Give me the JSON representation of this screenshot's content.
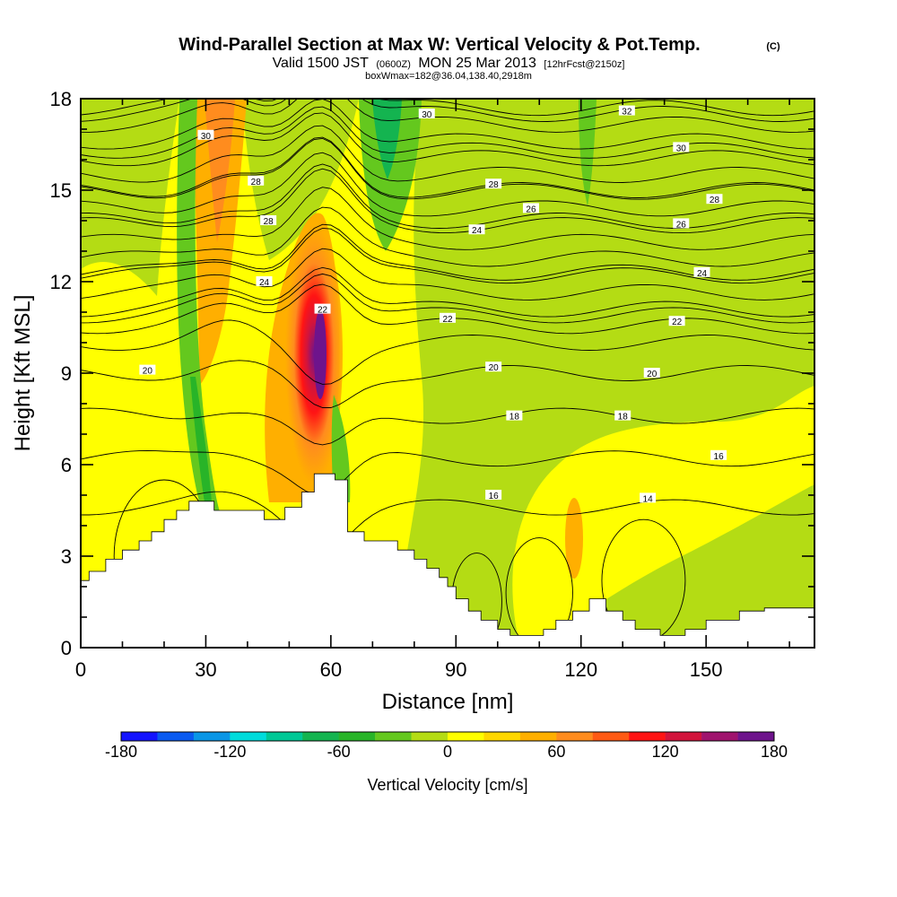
{
  "title": {
    "main": "Wind-Parallel Section at Max W: Vertical Velocity & Pot.Temp.",
    "copyright": "(C)",
    "valid_prefix": "Valid 1500 JST",
    "valid_utc": "(0600Z)",
    "valid_date": "MON 25 Mar 2013",
    "forecast": "[12hrFcst@2150z]",
    "box": "boxWmax=182@36.04,138.40,2918m"
  },
  "chart_data": {
    "type": "heatmap",
    "xlabel": "Distance [nm]",
    "ylabel": "Height [Kft MSL]",
    "xlim": [
      0,
      176
    ],
    "ylim": [
      0,
      18
    ],
    "x_ticks": [
      0,
      30,
      60,
      90,
      120,
      150
    ],
    "y_ticks": [
      0,
      3,
      6,
      9,
      12,
      15,
      18
    ],
    "colorbar": {
      "label": "Vertical Velocity [cm/s]",
      "ticks": [
        -180,
        -120,
        -60,
        0,
        60,
        120,
        180
      ],
      "range": [
        -180,
        180
      ],
      "colors": [
        "#1414ff",
        "#0a5af0",
        "#0a96e6",
        "#00dcdc",
        "#00c896",
        "#14b450",
        "#28b428",
        "#64c81e",
        "#b4dc14",
        "#ffff00",
        "#ffd700",
        "#ffaf00",
        "#ff8c1e",
        "#ff5a14",
        "#ff1414",
        "#d2143c",
        "#a0146e",
        "#6e148c"
      ]
    },
    "terrain": [
      [
        0,
        2.2
      ],
      [
        2,
        2.2
      ],
      [
        2,
        2.5
      ],
      [
        6,
        2.5
      ],
      [
        6,
        2.9
      ],
      [
        10,
        2.9
      ],
      [
        10,
        3.2
      ],
      [
        14,
        3.2
      ],
      [
        14,
        3.5
      ],
      [
        17,
        3.5
      ],
      [
        17,
        3.8
      ],
      [
        20,
        3.8
      ],
      [
        20,
        4.2
      ],
      [
        23,
        4.2
      ],
      [
        23,
        4.5
      ],
      [
        26,
        4.5
      ],
      [
        26,
        4.8
      ],
      [
        32,
        4.8
      ],
      [
        32,
        4.5
      ],
      [
        44,
        4.5
      ],
      [
        44,
        4.2
      ],
      [
        49,
        4.2
      ],
      [
        49,
        4.6
      ],
      [
        53,
        4.6
      ],
      [
        53,
        5.1
      ],
      [
        56,
        5.1
      ],
      [
        56,
        5.7
      ],
      [
        61,
        5.7
      ],
      [
        61,
        5.5
      ],
      [
        64,
        5.5
      ],
      [
        64,
        3.8
      ],
      [
        68,
        3.8
      ],
      [
        68,
        3.5
      ],
      [
        76,
        3.5
      ],
      [
        76,
        3.2
      ],
      [
        80,
        3.2
      ],
      [
        80,
        2.9
      ],
      [
        83,
        2.9
      ],
      [
        83,
        2.6
      ],
      [
        86,
        2.6
      ],
      [
        86,
        2.3
      ],
      [
        88,
        2.3
      ],
      [
        88,
        2.0
      ],
      [
        90,
        2.0
      ],
      [
        90,
        1.6
      ],
      [
        93,
        1.6
      ],
      [
        93,
        1.2
      ],
      [
        96,
        1.2
      ],
      [
        96,
        0.9
      ],
      [
        100,
        0.9
      ],
      [
        100,
        0.6
      ],
      [
        103,
        0.6
      ],
      [
        103,
        0.4
      ],
      [
        111,
        0.4
      ],
      [
        111,
        0.6
      ],
      [
        114,
        0.6
      ],
      [
        114,
        0.9
      ],
      [
        118,
        0.9
      ],
      [
        118,
        1.2
      ],
      [
        122,
        1.2
      ],
      [
        122,
        1.6
      ],
      [
        126,
        1.6
      ],
      [
        126,
        1.2
      ],
      [
        130,
        1.2
      ],
      [
        130,
        0.9
      ],
      [
        133,
        0.9
      ],
      [
        133,
        0.6
      ],
      [
        139,
        0.6
      ],
      [
        139,
        0.4
      ],
      [
        145,
        0.4
      ],
      [
        145,
        0.6
      ],
      [
        150,
        0.6
      ],
      [
        150,
        0.9
      ],
      [
        158,
        0.9
      ],
      [
        158,
        1.2
      ],
      [
        164,
        1.2
      ],
      [
        164,
        1.3
      ],
      [
        176,
        1.3
      ]
    ],
    "velocity_regions": [
      {
        "name": "downdraft-left-band",
        "value": -40
      },
      {
        "name": "updraft-core",
        "value": 182
      },
      {
        "name": "downdraft-upper-mid",
        "value": -60
      },
      {
        "name": "downdraft-upper-right",
        "value": -40
      }
    ],
    "potential_temperature_contours": [
      {
        "value": 14,
        "label": "14"
      },
      {
        "value": 16,
        "label": "16"
      },
      {
        "value": 18,
        "label": "18"
      },
      {
        "value": 20,
        "label": "20"
      },
      {
        "value": 22,
        "label": "22"
      },
      {
        "value": 24,
        "label": "24"
      },
      {
        "value": 26,
        "label": "26"
      },
      {
        "value": 28,
        "label": "28"
      },
      {
        "value": 30,
        "label": "30"
      },
      {
        "value": 32,
        "label": "32"
      }
    ],
    "contour_labels": [
      {
        "text": "30",
        "x": 30,
        "y": 16.8
      },
      {
        "text": "28",
        "x": 42,
        "y": 15.3
      },
      {
        "text": "28",
        "x": 45,
        "y": 14.0
      },
      {
        "text": "24",
        "x": 44,
        "y": 12.0
      },
      {
        "text": "22",
        "x": 58,
        "y": 11.1
      },
      {
        "text": "20",
        "x": 16,
        "y": 9.1
      },
      {
        "text": "30",
        "x": 83,
        "y": 17.5
      },
      {
        "text": "28",
        "x": 99,
        "y": 15.2
      },
      {
        "text": "26",
        "x": 108,
        "y": 14.4
      },
      {
        "text": "24",
        "x": 95,
        "y": 13.7
      },
      {
        "text": "22",
        "x": 88,
        "y": 10.8
      },
      {
        "text": "20",
        "x": 99,
        "y": 9.2
      },
      {
        "text": "18",
        "x": 104,
        "y": 7.6
      },
      {
        "text": "16",
        "x": 99,
        "y": 5.0
      },
      {
        "text": "32",
        "x": 131,
        "y": 17.6
      },
      {
        "text": "30",
        "x": 144,
        "y": 16.4
      },
      {
        "text": "28",
        "x": 152,
        "y": 14.7
      },
      {
        "text": "26",
        "x": 144,
        "y": 13.9
      },
      {
        "text": "24",
        "x": 149,
        "y": 12.3
      },
      {
        "text": "22",
        "x": 143,
        "y": 10.7
      },
      {
        "text": "20",
        "x": 137,
        "y": 9.0
      },
      {
        "text": "18",
        "x": 130,
        "y": 7.6
      },
      {
        "text": "16",
        "x": 153,
        "y": 6.3
      },
      {
        "text": "14",
        "x": 136,
        "y": 4.9
      }
    ]
  }
}
